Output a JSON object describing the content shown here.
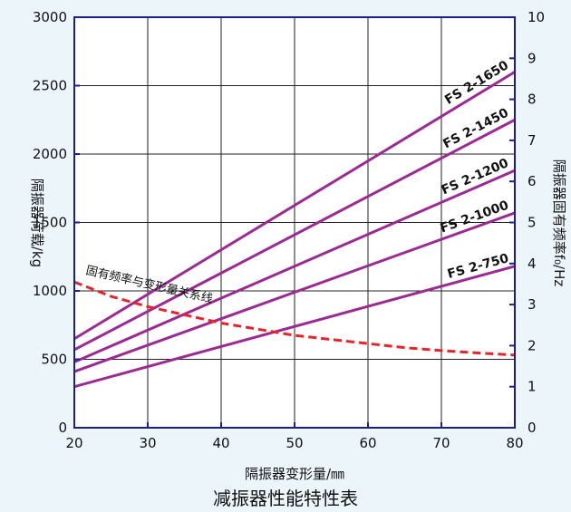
{
  "chart_data": {
    "type": "line",
    "caption": "减振器性能特性表",
    "xlabel": "隔振器变形量/㎜",
    "ylabel_left": "隔振器荷载/kg",
    "ylabel_right": "隔振器固有频率f₀/Hz",
    "xlim": [
      20,
      80
    ],
    "ylim_left": [
      0,
      3000
    ],
    "ylim_right": [
      0,
      10
    ],
    "x_ticks": [
      20,
      30,
      40,
      50,
      60,
      70,
      80
    ],
    "y_left_ticks": [
      0,
      500,
      1000,
      1500,
      2000,
      2500,
      3000
    ],
    "y_right_ticks": [
      0,
      1,
      2,
      3,
      4,
      5,
      6,
      7,
      8,
      9,
      10
    ],
    "grid": true,
    "series": [
      {
        "name": "FS 2-750",
        "x": [
          20,
          80
        ],
        "y": [
          300,
          1180
        ],
        "color": "#9b2a93"
      },
      {
        "name": "FS 2-1000",
        "x": [
          20,
          80
        ],
        "y": [
          410,
          1570
        ],
        "color": "#9b2a93"
      },
      {
        "name": "FS 2-1200",
        "x": [
          20,
          80
        ],
        "y": [
          480,
          1880
        ],
        "color": "#9b2a93"
      },
      {
        "name": "FS 2-1450",
        "x": [
          20,
          80
        ],
        "y": [
          570,
          2250
        ],
        "color": "#9b2a93"
      },
      {
        "name": "FS 2-1650",
        "x": [
          20,
          80
        ],
        "y": [
          650,
          2600
        ],
        "color": "#9b2a93"
      }
    ],
    "frequency_curve": {
      "name": "固有频率与变形量关系线",
      "axis": "right",
      "color": "#e8242a",
      "style": "dashed",
      "x": [
        20,
        25,
        30,
        35,
        40,
        45,
        50,
        55,
        60,
        65,
        70,
        75,
        80
      ],
      "y": [
        3.55,
        3.2,
        2.95,
        2.75,
        2.55,
        2.4,
        2.25,
        2.15,
        2.05,
        1.95,
        1.88,
        1.82,
        1.77
      ]
    },
    "colors": {
      "background": "#ecf5fa",
      "plot_area": "#ffffff",
      "frame": "#1a1f8c",
      "grid": "#222222"
    }
  }
}
